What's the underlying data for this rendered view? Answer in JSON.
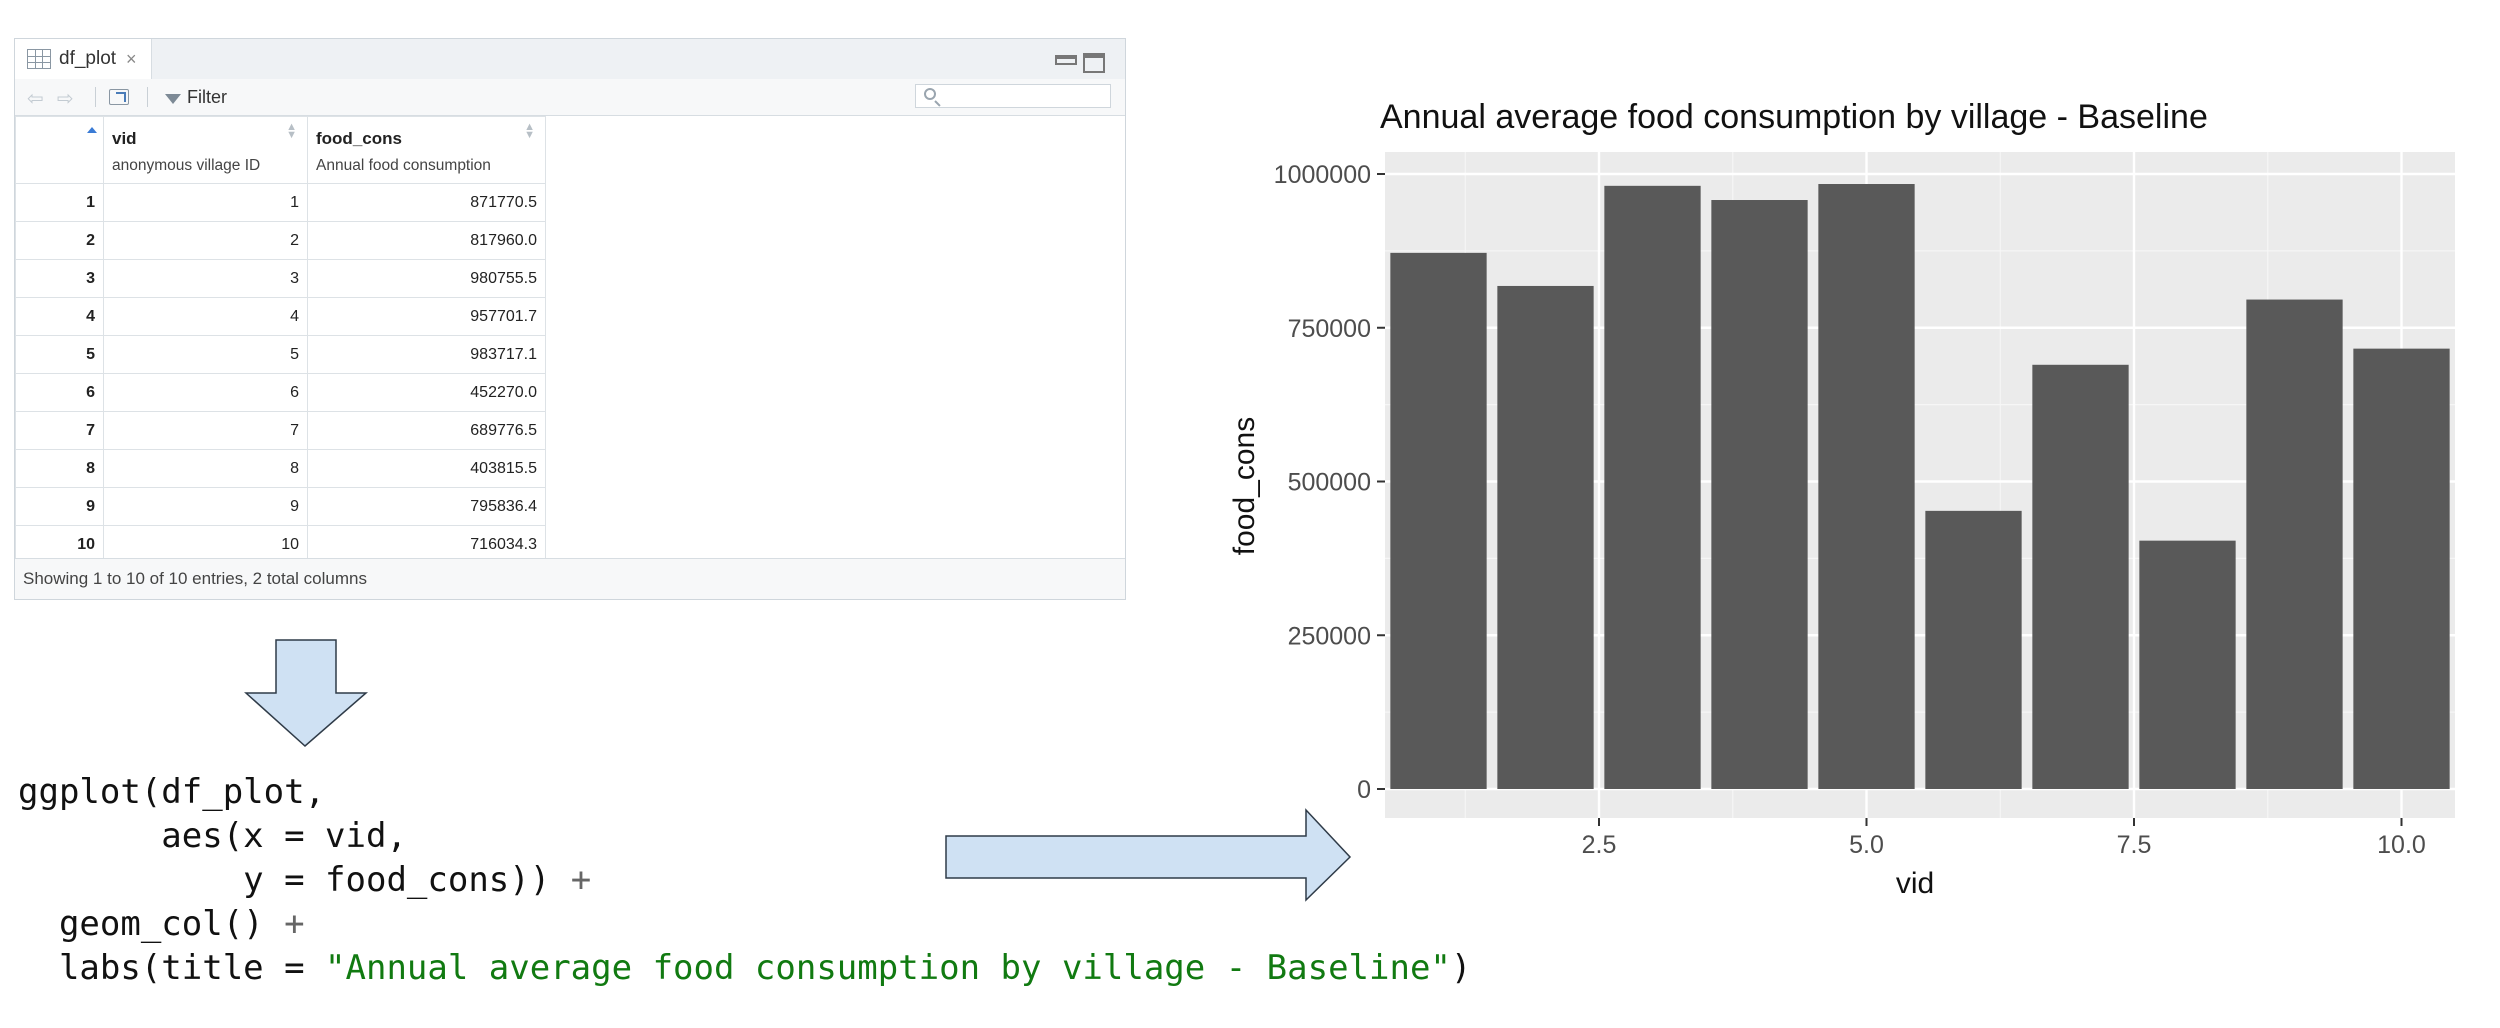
{
  "viewer": {
    "tab_label": "df_plot",
    "tab_close": "×",
    "filter_label": "Filter",
    "columns": [
      {
        "name": "vid",
        "label": "anonymous village ID"
      },
      {
        "name": "food_cons",
        "label": "Annual food consumption"
      }
    ],
    "rows": [
      {
        "row": "1",
        "vid": "1",
        "food_cons": "871770.5"
      },
      {
        "row": "2",
        "vid": "2",
        "food_cons": "817960.0"
      },
      {
        "row": "3",
        "vid": "3",
        "food_cons": "980755.5"
      },
      {
        "row": "4",
        "vid": "4",
        "food_cons": "957701.7"
      },
      {
        "row": "5",
        "vid": "5",
        "food_cons": "983717.1"
      },
      {
        "row": "6",
        "vid": "6",
        "food_cons": "452270.0"
      },
      {
        "row": "7",
        "vid": "7",
        "food_cons": "689776.5"
      },
      {
        "row": "8",
        "vid": "8",
        "food_cons": "403815.5"
      },
      {
        "row": "9",
        "vid": "9",
        "food_cons": "795836.4"
      },
      {
        "row": "10",
        "vid": "10",
        "food_cons": "716034.3"
      }
    ],
    "footer": "Showing 1 to 10 of 10 entries, 2 total columns"
  },
  "code": {
    "l1": "ggplot(df_plot,",
    "l2": "       aes(x = vid,",
    "l3a": "           y = food_cons)) ",
    "l3b": "+",
    "l4a": "  geom_col() ",
    "l4b": "+",
    "l5a": "  labs(title = ",
    "l5b": "\"Annual average food consumption by village - Baseline\"",
    "l5c": ")"
  },
  "colors": {
    "panel_bg": "#ebebeb",
    "bar_fill": "#595959",
    "arrow_fill": "#cfe1f3",
    "arrow_stroke": "#2f3b48"
  },
  "chart_data": {
    "type": "bar",
    "title": "Annual average food consumption by village - Baseline",
    "xlabel": "vid",
    "ylabel": "food_cons",
    "x": [
      1,
      2,
      3,
      4,
      5,
      6,
      7,
      8,
      9,
      10
    ],
    "values": [
      871770.5,
      817960.0,
      980755.5,
      957701.7,
      983717.1,
      452270.0,
      689776.5,
      403815.5,
      795836.4,
      716034.3
    ],
    "xlim": [
      0.5,
      10.5
    ],
    "ylim": [
      0,
      1000000
    ],
    "x_ticks": [
      2.5,
      5.0,
      7.5,
      10.0
    ],
    "x_tick_labels": [
      "2.5",
      "5.0",
      "7.5",
      "10.0"
    ],
    "y_ticks": [
      0,
      250000,
      500000,
      750000,
      1000000
    ],
    "y_tick_labels": [
      "0",
      "250000",
      "500000",
      "750000",
      "1000000"
    ],
    "grid": true
  }
}
